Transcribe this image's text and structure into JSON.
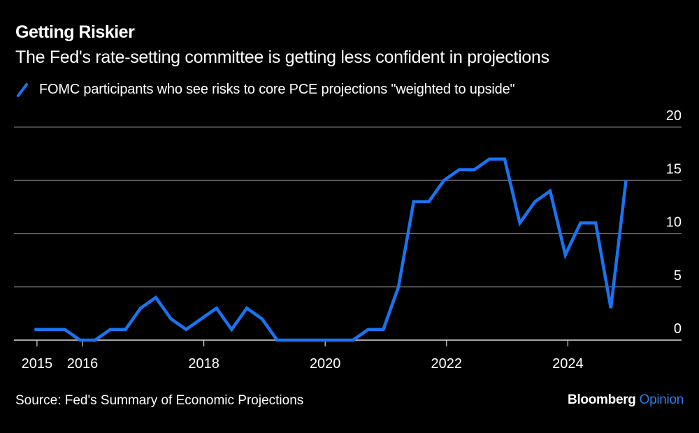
{
  "chart_data": {
    "type": "line",
    "title": "Getting Riskier",
    "subtitle": "The Fed's rate-setting committee is getting less confident in projections",
    "source": "Source: Fed's Summary of Economic Projections",
    "logo": {
      "brand": "Bloomberg",
      "section": "Opinion"
    },
    "legend_position": "top-left",
    "grid": true,
    "ylim": [
      0,
      20
    ],
    "yticks": [
      "0",
      "5",
      "10",
      "15",
      "20"
    ],
    "xticks": [
      "2015",
      "2016",
      "2018",
      "2020",
      "2022",
      "2024"
    ],
    "colors": {
      "series": "#1a73f0",
      "background": "#000000",
      "grid": "#6e6e6e",
      "text": "#ffffff",
      "logo_accent": "#2f7bea"
    },
    "series": [
      {
        "name": "FOMC participants who see risks to core PCE projections \"weighted to upside\"",
        "x": [
          "2015-03",
          "2015-06",
          "2015-09",
          "2015-12",
          "2016-03",
          "2016-06",
          "2016-09",
          "2016-12",
          "2017-03",
          "2017-06",
          "2017-09",
          "2017-12",
          "2018-03",
          "2018-06",
          "2018-09",
          "2018-12",
          "2019-03",
          "2019-06",
          "2019-09",
          "2019-12",
          "2020-06",
          "2020-09",
          "2020-12",
          "2021-03",
          "2021-06",
          "2021-09",
          "2021-12",
          "2022-03",
          "2022-06",
          "2022-09",
          "2022-12",
          "2023-03",
          "2023-06",
          "2023-09",
          "2023-12",
          "2024-03",
          "2024-06",
          "2024-09",
          "2024-12"
        ],
        "values": [
          1,
          1,
          1,
          0,
          0,
          1,
          1,
          3,
          4,
          2,
          1,
          2,
          3,
          1,
          3,
          2,
          0,
          0,
          0,
          0,
          0,
          1,
          1,
          5,
          13,
          13,
          15,
          16,
          16,
          17,
          17,
          11,
          13,
          14,
          8,
          11,
          11,
          3,
          15
        ]
      }
    ]
  }
}
